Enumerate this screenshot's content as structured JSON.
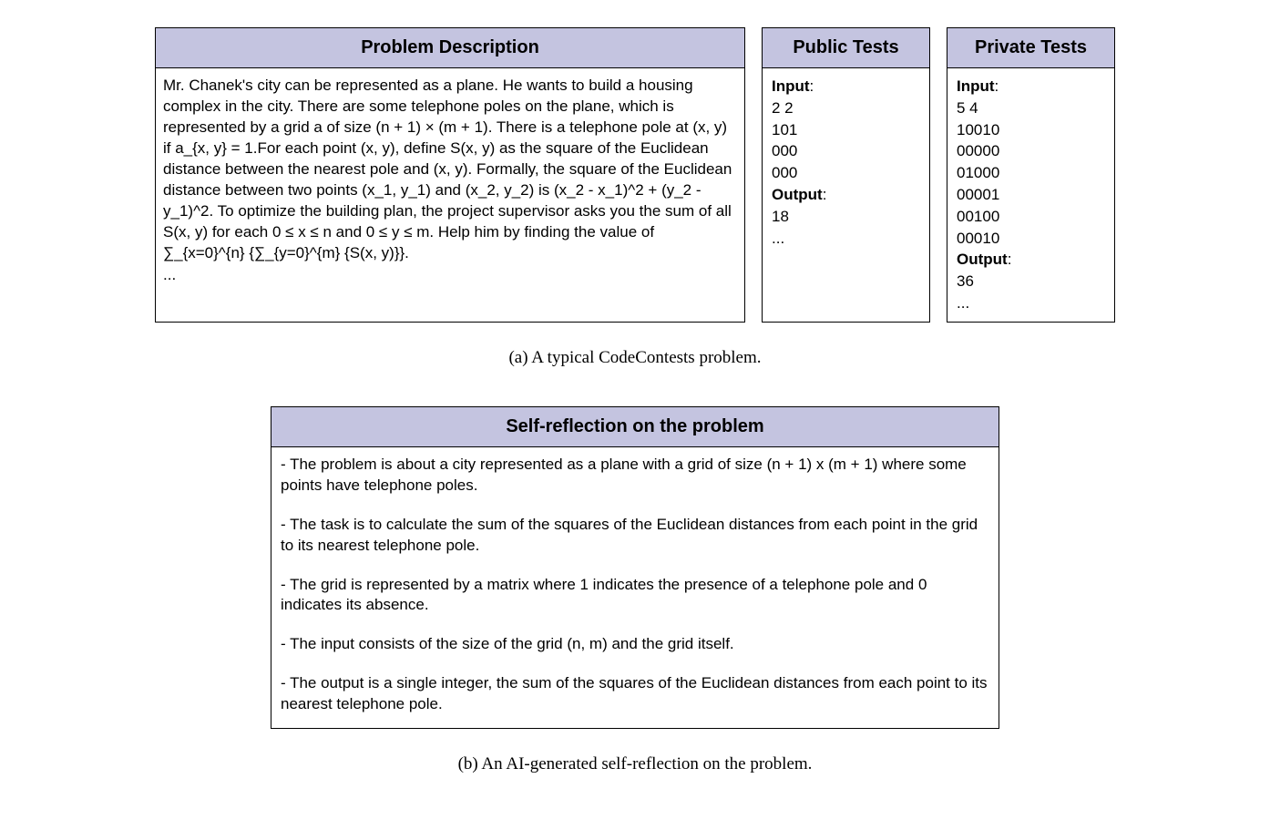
{
  "top": {
    "problem": {
      "header": "Problem Description",
      "text": "Mr. Chanek's city can be represented as a plane. He wants to build a housing complex in the city. There are some telephone poles on the plane, which is represented by a grid a of size (n + 1) × (m + 1). There is a telephone pole at (x, y) if a_{x, y} = 1.For each point (x, y), define S(x, y) as the square of the Euclidean distance between the nearest pole and (x, y). Formally, the square of the Euclidean distance between two points (x_1, y_1) and (x_2, y_2) is (x_2 - x_1)^2 + (y_2 - y_1)^2. To optimize the building plan, the project supervisor asks you the sum of all S(x, y) for each 0 ≤ x ≤ n and 0 ≤ y ≤ m. Help him by finding the value of ∑_{x=0}^{n} {∑_{y=0}^{m} {S(x, y)}}.",
      "ellipsis": "..."
    },
    "public": {
      "header": "Public Tests",
      "input_label": "Input",
      "input_lines": "2 2\n101\n000\n000",
      "output_label": "Output",
      "output_lines": "18",
      "ellipsis": "..."
    },
    "private": {
      "header": "Private Tests",
      "input_label": "Input",
      "input_lines": "5 4\n10010\n00000\n01000\n00001\n00100\n00010",
      "output_label": "Output",
      "output_lines": "36",
      "ellipsis": "..."
    }
  },
  "caption_a": "(a) A typical CodeContests problem.",
  "reflection": {
    "header": "Self-reflection on the problem",
    "points": {
      "p1": "- The problem is about a city represented as a plane with a grid of size (n + 1) x (m + 1) where some points have telephone poles.",
      "p2": "- The task is to calculate the sum of the squares of the Euclidean distances from each point in the grid to its nearest telephone pole.",
      "p3": "- The grid is represented by a matrix where 1 indicates the presence of a telephone pole and 0 indicates its absence.",
      "p4": "- The input consists of the size of the grid (n, m) and the grid itself.",
      "p5": "- The output is a single integer, the sum of the squares of the Euclidean distances from each point to its nearest telephone pole."
    }
  },
  "caption_b": "(b) An AI-generated self-reflection on the problem."
}
